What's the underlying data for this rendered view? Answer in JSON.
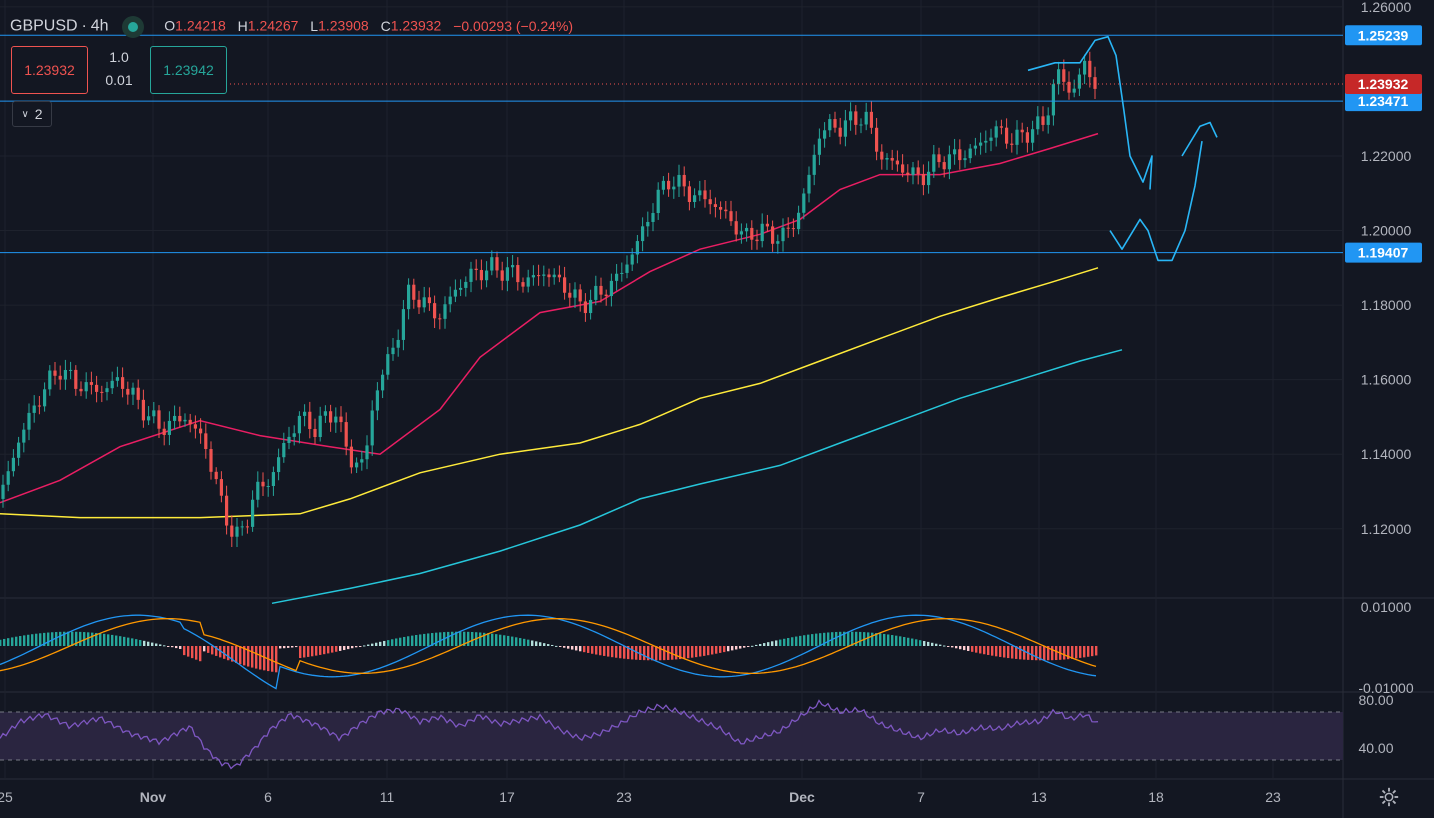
{
  "header": {
    "symbol": "GBPUSD",
    "separator": "·",
    "interval": "4h",
    "open_label": "O",
    "open": "1.24218",
    "high_label": "H",
    "high": "1.24267",
    "low_label": "L",
    "low": "1.23908",
    "close_label": "C",
    "close": "1.23932",
    "change": "−0.00293 (−0.24%)"
  },
  "trade_panel": {
    "sell_price": "1.23932",
    "buy_price": "1.23942",
    "lot_size": "1.0",
    "step": "0.01"
  },
  "indicators_toggle": {
    "label": "2"
  },
  "colors": {
    "background": "#131722",
    "up": "#26a69a",
    "down": "#ef5350",
    "ma_fast": "#e91e63",
    "ma_mid": "#ffeb3b",
    "ma_slow": "#26c6da",
    "hline": "#2196f3",
    "macd": "#2196f3",
    "signal": "#ff9800",
    "rsi": "#7e57c2"
  },
  "chart_data": {
    "type": "candlestick",
    "x_tick_labels": [
      "25",
      "Nov",
      "6",
      "11",
      "17",
      "23",
      "Dec",
      "7",
      "13",
      "18",
      "23"
    ],
    "y_tick_labels": [
      "1.26000",
      "1.22000",
      "1.20000",
      "1.18000",
      "1.16000",
      "1.14000",
      "1.12000"
    ],
    "ylim": [
      1.1,
      1.26
    ],
    "current_price": {
      "label": "1.23932",
      "value": 1.23932
    },
    "horizontal_lines": [
      {
        "label": "1.25239",
        "value": 1.25239
      },
      {
        "label": "1.23471",
        "value": 1.23471
      },
      {
        "label": "1.19407",
        "value": 1.19407
      }
    ],
    "close_path": [
      [
        0,
        1.128
      ],
      [
        20,
        1.145
      ],
      [
        45,
        1.158
      ],
      [
        60,
        1.163
      ],
      [
        75,
        1.159
      ],
      [
        100,
        1.157
      ],
      [
        120,
        1.16
      ],
      [
        140,
        1.153
      ],
      [
        160,
        1.147
      ],
      [
        185,
        1.15
      ],
      [
        205,
        1.143
      ],
      [
        220,
        1.128
      ],
      [
        235,
        1.117
      ],
      [
        245,
        1.121
      ],
      [
        255,
        1.13
      ],
      [
        270,
        1.133
      ],
      [
        285,
        1.143
      ],
      [
        300,
        1.15
      ],
      [
        315,
        1.147
      ],
      [
        335,
        1.152
      ],
      [
        350,
        1.138
      ],
      [
        365,
        1.138
      ],
      [
        375,
        1.157
      ],
      [
        390,
        1.166
      ],
      [
        410,
        1.184
      ],
      [
        425,
        1.18
      ],
      [
        440,
        1.177
      ],
      [
        455,
        1.184
      ],
      [
        470,
        1.188
      ],
      [
        490,
        1.19
      ],
      [
        510,
        1.189
      ],
      [
        525,
        1.186
      ],
      [
        545,
        1.189
      ],
      [
        565,
        1.185
      ],
      [
        580,
        1.18
      ],
      [
        600,
        1.183
      ],
      [
        620,
        1.188
      ],
      [
        640,
        1.198
      ],
      [
        655,
        1.208
      ],
      [
        670,
        1.214
      ],
      [
        690,
        1.21
      ],
      [
        710,
        1.208
      ],
      [
        730,
        1.203
      ],
      [
        745,
        1.198
      ],
      [
        760,
        1.2
      ],
      [
        780,
        1.198
      ],
      [
        795,
        1.202
      ],
      [
        810,
        1.215
      ],
      [
        820,
        1.227
      ],
      [
        840,
        1.228
      ],
      [
        865,
        1.231
      ],
      [
        880,
        1.22
      ],
      [
        900,
        1.217
      ],
      [
        920,
        1.214
      ],
      [
        940,
        1.219
      ],
      [
        960,
        1.22
      ],
      [
        975,
        1.222
      ],
      [
        995,
        1.227
      ],
      [
        1015,
        1.224
      ],
      [
        1030,
        1.227
      ],
      [
        1045,
        1.229
      ],
      [
        1057,
        1.243
      ],
      [
        1070,
        1.237
      ],
      [
        1085,
        1.244
      ],
      [
        1098,
        1.239
      ]
    ],
    "ma_fast": [
      [
        0,
        1.127
      ],
      [
        60,
        1.133
      ],
      [
        120,
        1.142
      ],
      [
        200,
        1.149
      ],
      [
        260,
        1.145
      ],
      [
        330,
        1.142
      ],
      [
        380,
        1.14
      ],
      [
        440,
        1.152
      ],
      [
        480,
        1.166
      ],
      [
        540,
        1.178
      ],
      [
        600,
        1.181
      ],
      [
        650,
        1.189
      ],
      [
        700,
        1.195
      ],
      [
        760,
        1.199
      ],
      [
        800,
        1.203
      ],
      [
        840,
        1.211
      ],
      [
        880,
        1.215
      ],
      [
        940,
        1.215
      ],
      [
        1000,
        1.218
      ],
      [
        1050,
        1.222
      ],
      [
        1098,
        1.226
      ]
    ],
    "ma_mid": [
      [
        0,
        1.124
      ],
      [
        80,
        1.123
      ],
      [
        200,
        1.123
      ],
      [
        300,
        1.124
      ],
      [
        350,
        1.128
      ],
      [
        420,
        1.135
      ],
      [
        500,
        1.14
      ],
      [
        580,
        1.143
      ],
      [
        640,
        1.148
      ],
      [
        700,
        1.155
      ],
      [
        760,
        1.159
      ],
      [
        820,
        1.165
      ],
      [
        880,
        1.171
      ],
      [
        940,
        1.177
      ],
      [
        1000,
        1.182
      ],
      [
        1050,
        1.186
      ],
      [
        1098,
        1.19
      ]
    ],
    "ma_slow": [
      [
        272,
        1.1
      ],
      [
        350,
        1.104
      ],
      [
        420,
        1.108
      ],
      [
        500,
        1.114
      ],
      [
        580,
        1.121
      ],
      [
        640,
        1.128
      ],
      [
        700,
        1.132
      ],
      [
        780,
        1.137
      ],
      [
        840,
        1.143
      ],
      [
        900,
        1.149
      ],
      [
        960,
        1.155
      ],
      [
        1020,
        1.16
      ],
      [
        1080,
        1.165
      ],
      [
        1122,
        1.168
      ]
    ],
    "drawing_path": [
      [
        1028,
        1.243
      ],
      [
        1055,
        1.245
      ],
      [
        1080,
        1.245
      ],
      [
        1095,
        1.251
      ],
      [
        1108,
        1.252
      ],
      [
        1116,
        1.247
      ],
      [
        1124,
        1.232
      ],
      [
        1130,
        1.22
      ],
      [
        1143,
        1.213
      ],
      [
        1152,
        1.22
      ],
      [
        1150,
        1.211
      ],
      [
        1110,
        1.2
      ],
      [
        1122,
        1.195
      ],
      [
        1140,
        1.203
      ],
      [
        1148,
        1.2
      ],
      [
        1158,
        1.192
      ],
      [
        1172,
        1.192
      ],
      [
        1185,
        1.2
      ],
      [
        1195,
        1.212
      ],
      [
        1202,
        1.224
      ],
      [
        1182,
        1.22
      ],
      [
        1200,
        1.228
      ],
      [
        1210,
        1.229
      ],
      [
        1217,
        1.225
      ]
    ],
    "macd_panel": {
      "y_tick_labels": [
        "0.01000",
        "-0.01000"
      ],
      "ylim": [
        -0.012,
        0.012
      ]
    },
    "rsi_panel": {
      "y_tick_labels": [
        "80.00",
        "40.00"
      ],
      "ylim": [
        20,
        95
      ],
      "bands": [
        70,
        30
      ],
      "values": [
        [
          0,
          48
        ],
        [
          20,
          62
        ],
        [
          45,
          68
        ],
        [
          70,
          58
        ],
        [
          100,
          65
        ],
        [
          130,
          52
        ],
        [
          160,
          45
        ],
        [
          190,
          58
        ],
        [
          205,
          40
        ],
        [
          220,
          28
        ],
        [
          235,
          24
        ],
        [
          255,
          40
        ],
        [
          270,
          55
        ],
        [
          290,
          68
        ],
        [
          320,
          58
        ],
        [
          340,
          48
        ],
        [
          360,
          60
        ],
        [
          380,
          70
        ],
        [
          400,
          72
        ],
        [
          420,
          62
        ],
        [
          440,
          66
        ],
        [
          460,
          58
        ],
        [
          480,
          67
        ],
        [
          500,
          60
        ],
        [
          520,
          63
        ],
        [
          540,
          66
        ],
        [
          560,
          55
        ],
        [
          580,
          48
        ],
        [
          600,
          52
        ],
        [
          620,
          60
        ],
        [
          640,
          70
        ],
        [
          660,
          75
        ],
        [
          680,
          70
        ],
        [
          700,
          63
        ],
        [
          720,
          56
        ],
        [
          740,
          44
        ],
        [
          760,
          49
        ],
        [
          780,
          54
        ],
        [
          800,
          66
        ],
        [
          820,
          78
        ],
        [
          840,
          70
        ],
        [
          860,
          72
        ],
        [
          880,
          60
        ],
        [
          900,
          54
        ],
        [
          920,
          48
        ],
        [
          940,
          55
        ],
        [
          960,
          52
        ],
        [
          980,
          57
        ],
        [
          1000,
          56
        ],
        [
          1020,
          61
        ],
        [
          1040,
          62
        ],
        [
          1055,
          71
        ],
        [
          1070,
          64
        ],
        [
          1085,
          68
        ],
        [
          1098,
          60
        ]
      ]
    }
  }
}
